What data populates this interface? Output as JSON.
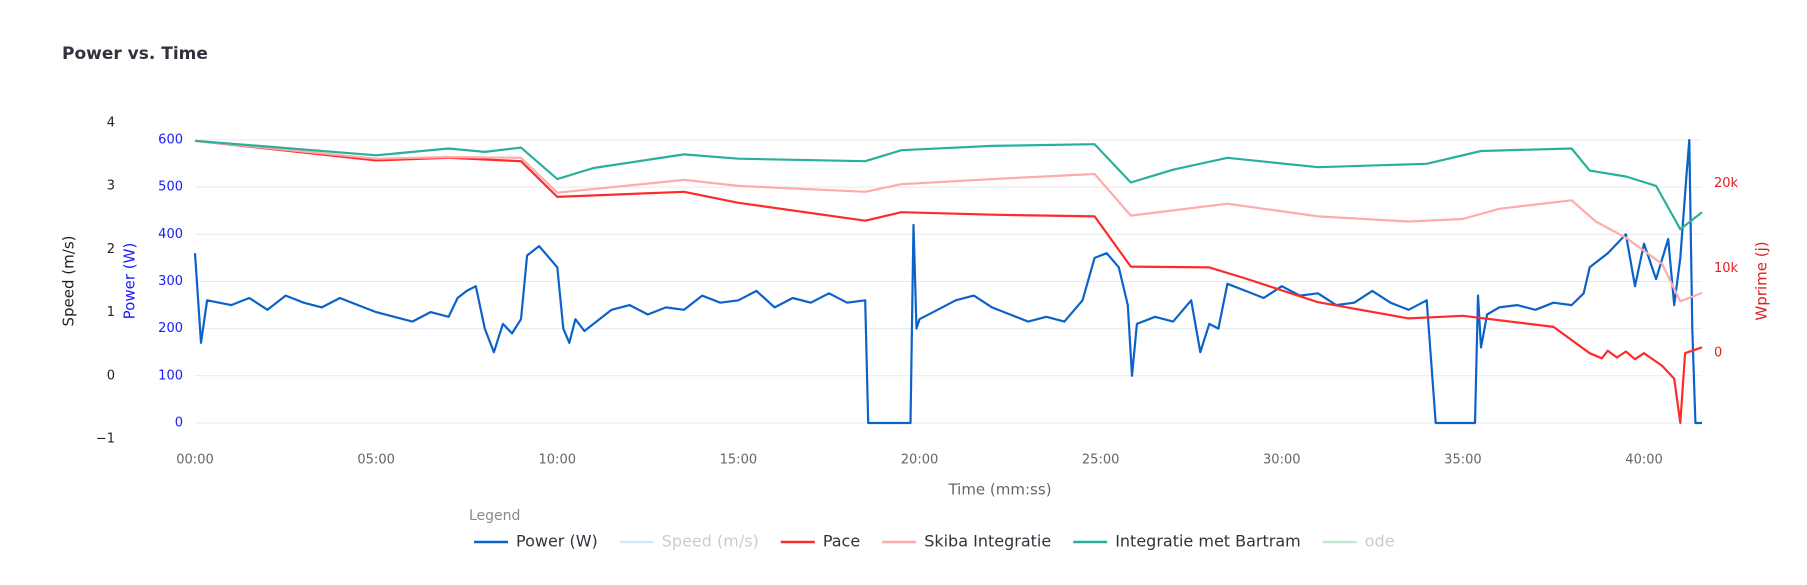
{
  "chart_data": {
    "type": "line",
    "title": "Power vs. Time",
    "x_label": "Time (mm:ss)",
    "y_label": "Power (W)",
    "y2_label": "Wprime (j)",
    "y3_label": "Speed (m/s)",
    "legend_title": "Legend",
    "grid": true,
    "xlim": [
      0,
      2496
    ],
    "xticks": [
      {
        "value": 0,
        "label": "00:00"
      },
      {
        "value": 300,
        "label": "05:00"
      },
      {
        "value": 600,
        "label": "10:00"
      },
      {
        "value": 900,
        "label": "15:00"
      },
      {
        "value": 1200,
        "label": "20:00"
      },
      {
        "value": 1500,
        "label": "25:00"
      },
      {
        "value": 1800,
        "label": "30:00"
      },
      {
        "value": 2100,
        "label": "35:00"
      },
      {
        "value": 2400,
        "label": "40:00"
      }
    ],
    "ylim": [
      -34,
      636
    ],
    "yticks": [
      0,
      100,
      200,
      300,
      400,
      500,
      600
    ],
    "y2lim": [
      -10100,
      27100
    ],
    "y2ticks": [
      0,
      {
        "value": 10000,
        "label": "10k"
      },
      {
        "value": 20000,
        "label": "20k"
      }
    ],
    "y3lim": [
      -1,
      4
    ],
    "y3ticks": [
      {
        "value": -1,
        "label": "−1"
      },
      0,
      1,
      2,
      3,
      4
    ],
    "series": [
      {
        "name": "Power (W)",
        "color": "#0b63c9",
        "axis": "y",
        "visible": true,
        "x": [
          0,
          10,
          20,
          60,
          90,
          120,
          150,
          180,
          210,
          240,
          270,
          300,
          330,
          360,
          390,
          420,
          435,
          450,
          465,
          480,
          495,
          510,
          525,
          540,
          550,
          570,
          590,
          600,
          610,
          620,
          630,
          645,
          660,
          690,
          720,
          750,
          780,
          810,
          840,
          870,
          900,
          930,
          960,
          990,
          1020,
          1050,
          1080,
          1110,
          1115,
          1185,
          1190,
          1195,
          1200,
          1230,
          1260,
          1290,
          1320,
          1350,
          1380,
          1410,
          1440,
          1470,
          1490,
          1510,
          1530,
          1545,
          1552,
          1560,
          1590,
          1620,
          1650,
          1665,
          1680,
          1695,
          1710,
          1740,
          1770,
          1800,
          1830,
          1860,
          1890,
          1920,
          1950,
          1980,
          2010,
          2040,
          2055,
          2120,
          2125,
          2130,
          2140,
          2160,
          2190,
          2220,
          2250,
          2280,
          2300,
          2310,
          2340,
          2370,
          2385,
          2400,
          2420,
          2440,
          2450,
          2460,
          2470,
          2475,
          2480,
          2485,
          2496
        ],
        "values": [
          360,
          170,
          260,
          250,
          265,
          240,
          270,
          255,
          245,
          265,
          250,
          235,
          225,
          215,
          235,
          225,
          265,
          280,
          290,
          200,
          150,
          210,
          190,
          220,
          355,
          375,
          345,
          330,
          200,
          170,
          220,
          195,
          210,
          240,
          250,
          230,
          245,
          240,
          270,
          255,
          260,
          280,
          245,
          265,
          255,
          275,
          255,
          260,
          0,
          0,
          420,
          200,
          220,
          240,
          260,
          270,
          245,
          230,
          215,
          225,
          215,
          260,
          350,
          360,
          330,
          250,
          100,
          210,
          225,
          215,
          260,
          150,
          210,
          200,
          295,
          280,
          265,
          290,
          270,
          275,
          250,
          255,
          280,
          255,
          240,
          260,
          0,
          0,
          270,
          160,
          230,
          245,
          250,
          240,
          255,
          250,
          275,
          330,
          360,
          400,
          290,
          380,
          305,
          390,
          250,
          350,
          520,
          600,
          200,
          0,
          0
        ]
      },
      {
        "name": "Speed (m/s)",
        "color": "#a9d4f5",
        "axis": "y3",
        "visible": false,
        "x": [],
        "values": []
      },
      {
        "name": "Pace",
        "color": "#ff2b2b",
        "axis": "y2",
        "visible": true,
        "x": [
          0,
          300,
          420,
          540,
          600,
          810,
          900,
          1110,
          1170,
          1320,
          1490,
          1550,
          1680,
          1740,
          1860,
          2010,
          2100,
          2250,
          2310,
          2330,
          2340,
          2355,
          2370,
          2385,
          2400,
          2430,
          2450,
          2460,
          2468,
          2496
        ],
        "values": [
          25000,
          22700,
          23000,
          22600,
          18400,
          19000,
          17700,
          15600,
          16600,
          16300,
          16100,
          10200,
          10100,
          8800,
          6000,
          4100,
          4400,
          3100,
          0,
          -600,
          300,
          -500,
          200,
          -700,
          0,
          -1500,
          -3000,
          -8200,
          0,
          700
        ]
      },
      {
        "name": "Skiba Integratie",
        "color": "#ffabab",
        "axis": "y2",
        "visible": true,
        "x": [
          0,
          300,
          420,
          540,
          600,
          810,
          900,
          1110,
          1170,
          1320,
          1490,
          1550,
          1710,
          1860,
          2010,
          2100,
          2160,
          2280,
          2320,
          2370,
          2430,
          2460,
          2496
        ],
        "values": [
          25000,
          22900,
          23100,
          23000,
          18900,
          20400,
          19700,
          19000,
          19900,
          20500,
          21100,
          16200,
          17600,
          16100,
          15500,
          15800,
          17000,
          18000,
          15500,
          13600,
          10500,
          6100,
          7100
        ]
      },
      {
        "name": "Integratie met Bartram",
        "color": "#29b09d",
        "axis": "y2",
        "visible": true,
        "x": [
          0,
          300,
          420,
          480,
          540,
          600,
          660,
          810,
          900,
          1110,
          1170,
          1320,
          1490,
          1550,
          1620,
          1710,
          1860,
          2040,
          2130,
          2280,
          2310,
          2370,
          2420,
          2460,
          2496
        ],
        "values": [
          25000,
          23300,
          24100,
          23700,
          24200,
          20500,
          21800,
          23400,
          22900,
          22600,
          23900,
          24400,
          24600,
          20100,
          21600,
          23000,
          21900,
          22300,
          23800,
          24100,
          21500,
          20800,
          19700,
          14600,
          16600
        ]
      },
      {
        "name": "ode",
        "color": "#7fd6a0",
        "axis": "y2",
        "visible": false,
        "x": [],
        "values": []
      }
    ]
  }
}
